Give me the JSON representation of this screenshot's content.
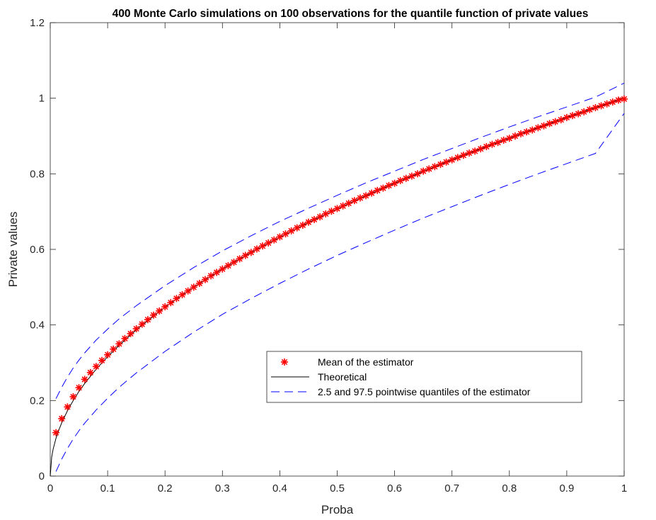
{
  "chart_data": {
    "type": "line",
    "title": "400 Monte Carlo simulations on 100 observations for the quantile function of private values",
    "xlabel": "Proba",
    "ylabel": "Private values",
    "xlim": [
      0,
      1
    ],
    "ylim": [
      0,
      1.2
    ],
    "xticks": [
      0,
      0.1,
      0.2,
      0.3,
      0.4,
      0.5,
      0.6,
      0.7,
      0.8,
      0.9,
      1
    ],
    "xtick_labels": [
      "0",
      "0.1",
      "0.2",
      "0.3",
      "0.4",
      "0.5",
      "0.6",
      "0.7",
      "0.8",
      "0.9",
      "1"
    ],
    "yticks": [
      0,
      0.2,
      0.4,
      0.6,
      0.8,
      1,
      1.2
    ],
    "ytick_labels": [
      "0",
      "0.2",
      "0.4",
      "0.6",
      "0.8",
      "1",
      "1.2"
    ],
    "grid": false,
    "legend_position": "lower-right",
    "series": [
      {
        "name": "Mean of the estimator",
        "style": "markers",
        "marker": "asterisk",
        "color": "#ff0000",
        "x": [
          0.01,
          0.02,
          0.03,
          0.04,
          0.05,
          0.06,
          0.07,
          0.08,
          0.09,
          0.1,
          0.11,
          0.12,
          0.13,
          0.14,
          0.15,
          0.16,
          0.17,
          0.18,
          0.19,
          0.2,
          0.21,
          0.22,
          0.23,
          0.24,
          0.25,
          0.26,
          0.27,
          0.28,
          0.29,
          0.3,
          0.31,
          0.32,
          0.33,
          0.34,
          0.35,
          0.36,
          0.37,
          0.38,
          0.39,
          0.4,
          0.41,
          0.42,
          0.43,
          0.44,
          0.45,
          0.46,
          0.47,
          0.48,
          0.49,
          0.5,
          0.51,
          0.52,
          0.53,
          0.54,
          0.55,
          0.56,
          0.57,
          0.58,
          0.59,
          0.6,
          0.61,
          0.62,
          0.63,
          0.64,
          0.65,
          0.66,
          0.67,
          0.68,
          0.69,
          0.7,
          0.71,
          0.72,
          0.73,
          0.74,
          0.75,
          0.76,
          0.77,
          0.78,
          0.79,
          0.8,
          0.81,
          0.82,
          0.83,
          0.84,
          0.85,
          0.86,
          0.87,
          0.88,
          0.89,
          0.9,
          0.91,
          0.92,
          0.93,
          0.94,
          0.95,
          0.96,
          0.97,
          0.98,
          0.99,
          1.0
        ],
        "values": [
          0.115,
          0.152,
          0.183,
          0.21,
          0.234,
          0.256,
          0.274,
          0.29,
          0.306,
          0.321,
          0.336,
          0.35,
          0.364,
          0.377,
          0.39,
          0.402,
          0.414,
          0.426,
          0.437,
          0.448,
          0.459,
          0.47,
          0.48,
          0.49,
          0.5,
          0.51,
          0.52,
          0.53,
          0.539,
          0.548,
          0.557,
          0.566,
          0.575,
          0.584,
          0.592,
          0.601,
          0.609,
          0.617,
          0.625,
          0.633,
          0.641,
          0.649,
          0.657,
          0.664,
          0.672,
          0.679,
          0.686,
          0.694,
          0.701,
          0.708,
          0.715,
          0.722,
          0.729,
          0.736,
          0.742,
          0.749,
          0.756,
          0.762,
          0.769,
          0.775,
          0.782,
          0.788,
          0.794,
          0.8,
          0.807,
          0.813,
          0.819,
          0.825,
          0.831,
          0.837,
          0.843,
          0.849,
          0.855,
          0.86,
          0.866,
          0.872,
          0.878,
          0.883,
          0.889,
          0.894,
          0.9,
          0.906,
          0.911,
          0.916,
          0.922,
          0.927,
          0.933,
          0.938,
          0.943,
          0.949,
          0.954,
          0.959,
          0.964,
          0.97,
          0.975,
          0.98,
          0.985,
          0.99,
          0.995,
          0.998
        ]
      },
      {
        "name": "Theoretical",
        "style": "solid",
        "color": "#000000",
        "x": [
          0,
          0.0025,
          0.005,
          0.01,
          0.015,
          0.02,
          0.03,
          0.04,
          0.05,
          0.06,
          0.08,
          0.1,
          0.12,
          0.15,
          0.2,
          0.25,
          0.3,
          0.35,
          0.4,
          0.45,
          0.5,
          0.55,
          0.6,
          0.65,
          0.7,
          0.75,
          0.8,
          0.85,
          0.9,
          0.95,
          1
        ],
        "values": [
          0,
          0.05,
          0.071,
          0.1,
          0.122,
          0.141,
          0.173,
          0.2,
          0.224,
          0.245,
          0.283,
          0.316,
          0.346,
          0.387,
          0.447,
          0.5,
          0.548,
          0.592,
          0.632,
          0.671,
          0.707,
          0.742,
          0.775,
          0.806,
          0.837,
          0.866,
          0.894,
          0.922,
          0.949,
          0.975,
          1
        ]
      },
      {
        "name": "2.5 and 97.5 pointwise quantiles of the estimator",
        "style": "dashed",
        "color": "#0000ff",
        "x": [
          0.01,
          0.02,
          0.03,
          0.04,
          0.05,
          0.06,
          0.08,
          0.1,
          0.12,
          0.15,
          0.2,
          0.25,
          0.3,
          0.35,
          0.4,
          0.45,
          0.5,
          0.55,
          0.6,
          0.65,
          0.7,
          0.75,
          0.8,
          0.85,
          0.9,
          0.95,
          1
        ],
        "values": [
          0.205,
          0.235,
          0.262,
          0.286,
          0.307,
          0.326,
          0.36,
          0.389,
          0.416,
          0.451,
          0.504,
          0.552,
          0.596,
          0.636,
          0.674,
          0.709,
          0.743,
          0.776,
          0.807,
          0.838,
          0.867,
          0.896,
          0.924,
          0.951,
          0.977,
          1.003,
          1.04
        ]
      },
      {
        "name": "",
        "style": "dashed",
        "color": "#0000ff",
        "x": [
          0.01,
          0.02,
          0.03,
          0.04,
          0.05,
          0.06,
          0.08,
          0.1,
          0.12,
          0.15,
          0.2,
          0.25,
          0.3,
          0.35,
          0.4,
          0.45,
          0.5,
          0.55,
          0.6,
          0.65,
          0.7,
          0.75,
          0.8,
          0.85,
          0.9,
          0.95,
          1
        ],
        "values": [
          0.012,
          0.045,
          0.073,
          0.098,
          0.12,
          0.14,
          0.175,
          0.206,
          0.235,
          0.273,
          0.33,
          0.381,
          0.428,
          0.47,
          0.51,
          0.548,
          0.584,
          0.618,
          0.651,
          0.683,
          0.713,
          0.743,
          0.772,
          0.8,
          0.827,
          0.854,
          0.96
        ]
      }
    ]
  }
}
